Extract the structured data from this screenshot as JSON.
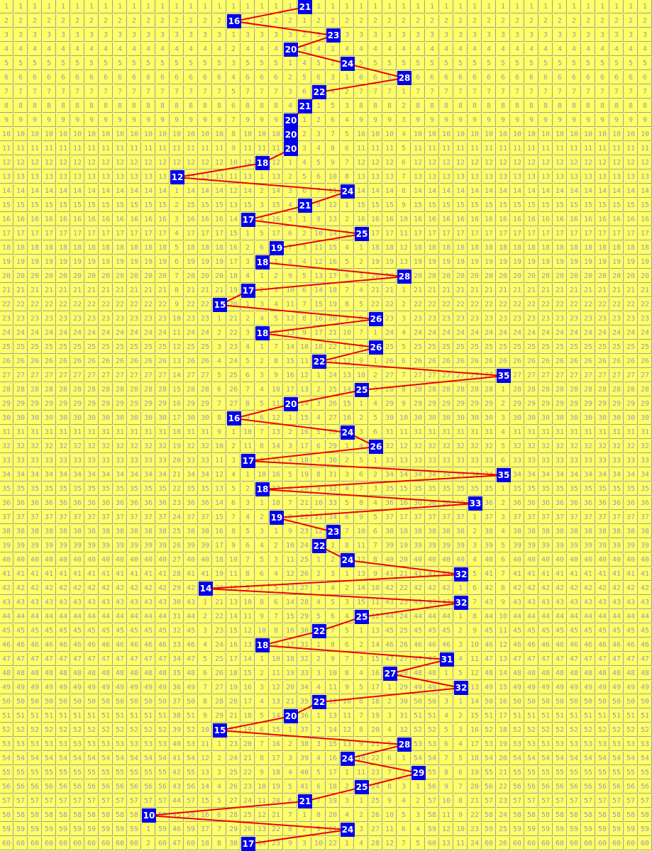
{
  "chart_data": {
    "type": "table",
    "rows": 60,
    "columns": 46,
    "row_labels_start": 1,
    "draws": [
      21,
      16,
      23,
      20,
      24,
      28,
      22,
      21,
      20,
      20,
      20,
      18,
      12,
      24,
      21,
      17,
      25,
      19,
      18,
      28,
      17,
      15,
      26,
      18,
      26,
      22,
      35,
      25,
      20,
      16,
      24,
      26,
      17,
      35,
      18,
      33,
      19,
      23,
      22,
      24,
      32,
      14,
      32,
      25,
      22,
      18,
      31,
      27,
      32,
      22,
      20,
      15,
      28,
      24,
      29,
      25,
      21,
      10,
      24,
      17
    ],
    "cell_text": "omission count since last hit in the column (row number before the first hit)",
    "colors": {
      "background": "#ffff66",
      "grid": "#a0a0a0",
      "text": "#9a9ab4",
      "hit": "#0000ee",
      "hit_text": "#ffffff",
      "line": "#ee0000"
    }
  }
}
